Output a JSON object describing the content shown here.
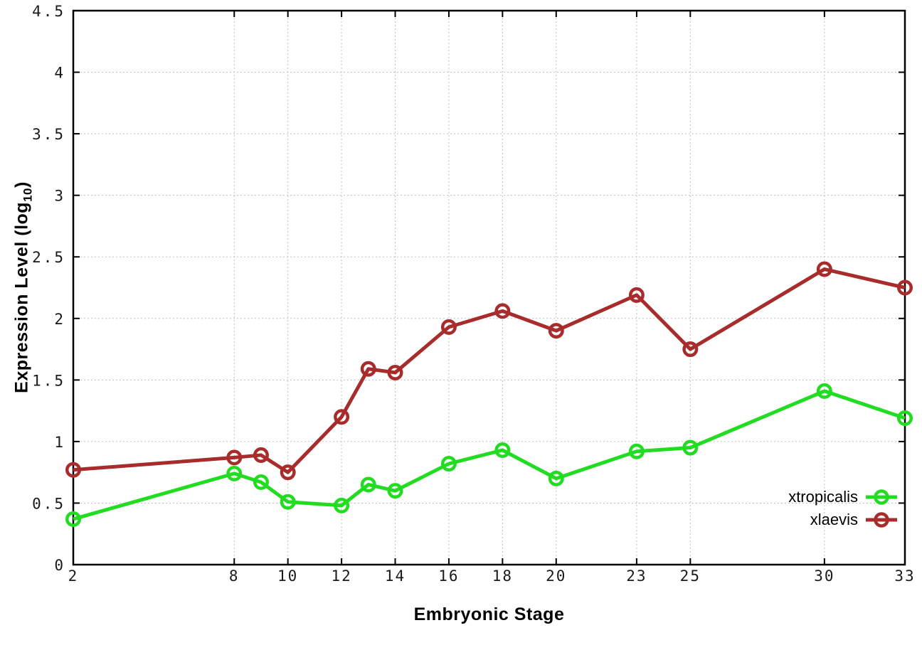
{
  "chart_data": {
    "type": "line",
    "title": "",
    "xlabel": "Embryonic Stage",
    "ylabel": "Expression Level (log10)",
    "ylabel_rich": {
      "prefix": "Expression Level (log",
      "subscript": "10",
      "suffix": ")"
    },
    "x": [
      2,
      8,
      9,
      10,
      12,
      13,
      14,
      16,
      18,
      20,
      23,
      25,
      30,
      33
    ],
    "xtick_labels": [
      2,
      8,
      10,
      12,
      14,
      16,
      18,
      20,
      23,
      25,
      30,
      33
    ],
    "ytick_labels": [
      0,
      0.5,
      1,
      1.5,
      2,
      2.5,
      3,
      3.5,
      4,
      4.5
    ],
    "xlim": [
      2,
      33
    ],
    "ylim": [
      0,
      4.5
    ],
    "grid": "dotted",
    "legend_position": "inside-bottom-right",
    "series": [
      {
        "name": "xtropicalis",
        "color": "#22DC22",
        "marker": "open-circle",
        "values": [
          0.37,
          0.74,
          0.67,
          0.51,
          0.48,
          0.65,
          0.6,
          0.82,
          0.93,
          0.7,
          0.92,
          0.95,
          1.41,
          1.19
        ]
      },
      {
        "name": "xlaevis",
        "color": "#A82C2C",
        "marker": "open-circle",
        "values": [
          0.77,
          0.87,
          0.89,
          0.75,
          1.2,
          1.59,
          1.56,
          1.93,
          2.06,
          1.9,
          2.19,
          1.75,
          2.4,
          2.25
        ]
      }
    ]
  },
  "style": {
    "background": "#FFFFFF",
    "axis_color": "#000000",
    "grid_color": "#C0C0C0",
    "tick_label_color": "#1A1A1A"
  }
}
